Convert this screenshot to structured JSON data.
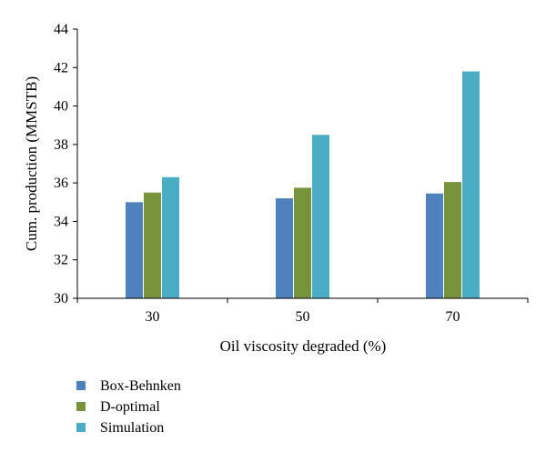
{
  "chart_data": {
    "type": "bar",
    "xlabel": "Oil viscosity degraded (%)",
    "ylabel": "Cum. production (MMSTB)",
    "categories": [
      "30",
      "50",
      "70"
    ],
    "series": [
      {
        "name": "Box-Behnken",
        "color": "#4f81bd",
        "values": [
          35.0,
          35.2,
          35.45
        ]
      },
      {
        "name": "D-optimal",
        "color": "#77933c",
        "values": [
          35.5,
          35.75,
          36.05
        ]
      },
      {
        "name": "Simulation",
        "color": "#4bacc6",
        "values": [
          36.3,
          38.5,
          41.8
        ]
      }
    ],
    "ylim": [
      30,
      44
    ],
    "yticks": [
      "30",
      "32",
      "34",
      "36",
      "38",
      "40",
      "42",
      "44"
    ],
    "grid": false,
    "legend_position": "bottom-left"
  }
}
